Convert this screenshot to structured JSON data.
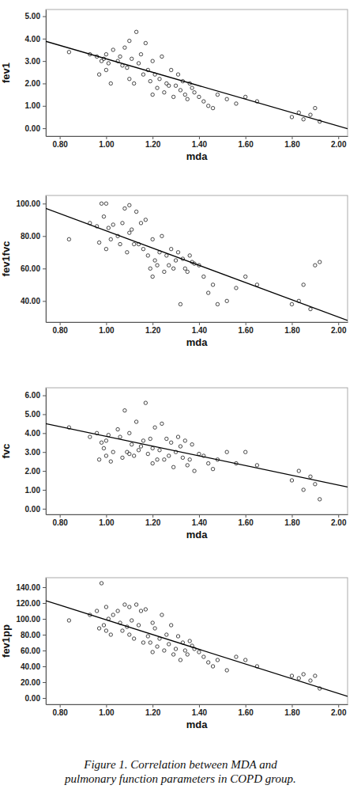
{
  "caption": "Figure 1. Correlation between MDA and pulmonary function parameters in COPD group.",
  "chart_data": [
    {
      "type": "scatter",
      "x_label": "mda",
      "y_label": "fev1",
      "xlim": [
        0.74,
        2.04
      ],
      "xticks": [
        {
          "value": 0.8,
          "label": "0.80"
        },
        {
          "value": 1.0,
          "label": "1.00"
        },
        {
          "value": 1.2,
          "label": "1.20"
        },
        {
          "value": 1.4,
          "label": "1.40"
        },
        {
          "value": 1.6,
          "label": "1.60"
        },
        {
          "value": 1.8,
          "label": "1.80"
        },
        {
          "value": 2.0,
          "label": "2.00"
        }
      ],
      "ylim": [
        -0.35,
        5.3
      ],
      "yticks": [
        {
          "value": 0,
          "label": "0.00"
        },
        {
          "value": 1,
          "label": "1.00"
        },
        {
          "value": 2,
          "label": "2.00"
        },
        {
          "value": 3,
          "label": "3.00"
        },
        {
          "value": 4,
          "label": "4.00"
        },
        {
          "value": 5,
          "label": "5.00"
        }
      ],
      "grid": false,
      "series": [
        {
          "type": "scatter",
          "marker": "circle",
          "color": "#333333",
          "x": [
            0.84,
            0.93,
            0.96,
            0.97,
            0.98,
            0.99,
            1.0,
            1.0,
            1.01,
            1.02,
            1.03,
            1.05,
            1.06,
            1.07,
            1.08,
            1.09,
            1.1,
            1.1,
            1.11,
            1.12,
            1.13,
            1.14,
            1.15,
            1.16,
            1.17,
            1.18,
            1.19,
            1.2,
            1.2,
            1.21,
            1.22,
            1.23,
            1.24,
            1.25,
            1.26,
            1.27,
            1.28,
            1.29,
            1.3,
            1.31,
            1.32,
            1.33,
            1.34,
            1.35,
            1.36,
            1.37,
            1.38,
            1.4,
            1.42,
            1.44,
            1.46,
            1.48,
            1.52,
            1.56,
            1.6,
            1.65,
            1.8,
            1.83,
            1.85,
            1.88,
            1.9,
            1.92
          ],
          "values": [
            3.4,
            3.3,
            3.2,
            2.4,
            3.0,
            3.1,
            2.6,
            3.3,
            2.9,
            2.0,
            3.5,
            3.0,
            3.2,
            2.8,
            3.6,
            2.7,
            3.9,
            2.2,
            3.1,
            2.0,
            4.3,
            2.9,
            3.3,
            2.4,
            3.8,
            2.6,
            2.1,
            3.0,
            1.5,
            2.4,
            1.8,
            2.2,
            3.2,
            1.6,
            2.0,
            1.9,
            2.6,
            1.4,
            1.9,
            2.4,
            1.7,
            2.1,
            1.5,
            1.3,
            2.0,
            1.8,
            1.6,
            1.4,
            1.2,
            1.0,
            0.9,
            1.5,
            1.3,
            1.1,
            1.4,
            1.2,
            0.5,
            0.7,
            0.4,
            0.6,
            0.9,
            0.3
          ]
        },
        {
          "type": "line",
          "line_style": "solid",
          "color": "#000000",
          "x": [
            0.74,
            2.04
          ],
          "values": [
            3.88,
            -0.02
          ]
        }
      ]
    },
    {
      "type": "scatter",
      "x_label": "mda",
      "y_label": "fev1fvc",
      "xlim": [
        0.74,
        2.04
      ],
      "xticks": [
        {
          "value": 0.8,
          "label": "0.80"
        },
        {
          "value": 1.0,
          "label": "1.00"
        },
        {
          "value": 1.2,
          "label": "1.20"
        },
        {
          "value": 1.4,
          "label": "1.40"
        },
        {
          "value": 1.6,
          "label": "1.60"
        },
        {
          "value": 1.8,
          "label": "1.80"
        },
        {
          "value": 2.0,
          "label": "2.00"
        }
      ],
      "ylim": [
        27,
        105
      ],
      "yticks": [
        {
          "value": 40,
          "label": "40.00"
        },
        {
          "value": 60,
          "label": "60.00"
        },
        {
          "value": 80,
          "label": "80.00"
        },
        {
          "value": 100,
          "label": "100.00"
        }
      ],
      "grid": false,
      "series": [
        {
          "type": "scatter",
          "marker": "circle",
          "color": "#333333",
          "x": [
            0.84,
            0.93,
            0.96,
            0.97,
            0.98,
            0.99,
            1.0,
            1.0,
            1.01,
            1.02,
            1.03,
            1.05,
            1.06,
            1.07,
            1.08,
            1.09,
            1.1,
            1.1,
            1.11,
            1.12,
            1.13,
            1.14,
            1.15,
            1.16,
            1.17,
            1.18,
            1.19,
            1.2,
            1.2,
            1.21,
            1.22,
            1.23,
            1.24,
            1.25,
            1.26,
            1.27,
            1.28,
            1.29,
            1.3,
            1.31,
            1.32,
            1.33,
            1.34,
            1.35,
            1.36,
            1.37,
            1.38,
            1.4,
            1.42,
            1.44,
            1.46,
            1.48,
            1.52,
            1.56,
            1.6,
            1.65,
            1.8,
            1.83,
            1.85,
            1.88,
            1.9,
            1.92
          ],
          "values": [
            78,
            88,
            86,
            76,
            100,
            92,
            72,
            100,
            85,
            78,
            87,
            80,
            75,
            88,
            97,
            70,
            99,
            82,
            84,
            75,
            95,
            75,
            88,
            72,
            90,
            68,
            60,
            78,
            55,
            65,
            62,
            70,
            80,
            58,
            68,
            62,
            72,
            60,
            65,
            70,
            38,
            66,
            60,
            58,
            68,
            64,
            63,
            62,
            55,
            45,
            50,
            38,
            40,
            48,
            55,
            50,
            38,
            40,
            50,
            35,
            62,
            64
          ]
        },
        {
          "type": "line",
          "line_style": "solid",
          "color": "#000000",
          "x": [
            0.74,
            2.04
          ],
          "values": [
            97,
            28
          ]
        }
      ]
    },
    {
      "type": "scatter",
      "x_label": "mda",
      "y_label": "fvc",
      "xlim": [
        0.74,
        2.04
      ],
      "xticks": [
        {
          "value": 0.8,
          "label": "0.80"
        },
        {
          "value": 1.0,
          "label": "1.00"
        },
        {
          "value": 1.2,
          "label": "1.20"
        },
        {
          "value": 1.4,
          "label": "1.40"
        },
        {
          "value": 1.6,
          "label": "1.60"
        },
        {
          "value": 1.8,
          "label": "1.80"
        },
        {
          "value": 2.0,
          "label": "2.00"
        }
      ],
      "ylim": [
        -0.3,
        6.4
      ],
      "yticks": [
        {
          "value": 0,
          "label": "0.00"
        },
        {
          "value": 1,
          "label": "1.00"
        },
        {
          "value": 2,
          "label": "2.00"
        },
        {
          "value": 3,
          "label": "3.00"
        },
        {
          "value": 4,
          "label": "4.00"
        },
        {
          "value": 5,
          "label": "5.00"
        },
        {
          "value": 6,
          "label": "6.00"
        }
      ],
      "grid": false,
      "series": [
        {
          "type": "scatter",
          "marker": "circle",
          "color": "#333333",
          "x": [
            0.84,
            0.93,
            0.96,
            0.97,
            0.98,
            0.99,
            1.0,
            1.0,
            1.01,
            1.02,
            1.03,
            1.05,
            1.06,
            1.07,
            1.08,
            1.09,
            1.1,
            1.1,
            1.11,
            1.12,
            1.13,
            1.14,
            1.15,
            1.16,
            1.17,
            1.18,
            1.19,
            1.2,
            1.2,
            1.21,
            1.22,
            1.23,
            1.24,
            1.25,
            1.26,
            1.27,
            1.28,
            1.29,
            1.3,
            1.31,
            1.32,
            1.33,
            1.34,
            1.35,
            1.36,
            1.37,
            1.38,
            1.4,
            1.42,
            1.44,
            1.46,
            1.48,
            1.52,
            1.56,
            1.6,
            1.65,
            1.8,
            1.83,
            1.85,
            1.88,
            1.9,
            1.92
          ],
          "values": [
            4.3,
            3.8,
            4.0,
            2.6,
            3.5,
            3.2,
            2.8,
            3.6,
            3.9,
            2.5,
            3.0,
            4.2,
            3.8,
            2.7,
            5.2,
            3.0,
            4.0,
            2.9,
            3.4,
            2.8,
            4.6,
            3.1,
            3.3,
            3.6,
            5.6,
            2.9,
            3.7,
            3.2,
            2.4,
            4.3,
            2.6,
            3.1,
            4.5,
            2.6,
            3.7,
            2.8,
            3.5,
            2.2,
            3.0,
            3.8,
            3.3,
            2.7,
            3.6,
            2.3,
            2.6,
            3.4,
            2.0,
            2.9,
            2.8,
            2.4,
            2.1,
            2.6,
            3.0,
            2.4,
            3.0,
            2.3,
            1.5,
            2.0,
            1.0,
            1.7,
            1.3,
            0.5
          ]
        },
        {
          "type": "line",
          "line_style": "solid",
          "color": "#000000",
          "x": [
            0.74,
            2.04
          ],
          "values": [
            4.5,
            1.15
          ]
        }
      ]
    },
    {
      "type": "scatter",
      "x_label": "mda",
      "y_label": "fev1pp",
      "xlim": [
        0.74,
        2.04
      ],
      "xticks": [
        {
          "value": 0.8,
          "label": "0.80"
        },
        {
          "value": 1.0,
          "label": "1.00"
        },
        {
          "value": 1.2,
          "label": "1.20"
        },
        {
          "value": 1.4,
          "label": "1.40"
        },
        {
          "value": 1.6,
          "label": "1.60"
        },
        {
          "value": 1.8,
          "label": "1.80"
        },
        {
          "value": 2.0,
          "label": "2.00"
        }
      ],
      "ylim": [
        -8,
        152
      ],
      "yticks": [
        {
          "value": 0,
          "label": "0.00"
        },
        {
          "value": 20,
          "label": "20.00"
        },
        {
          "value": 40,
          "label": "40.00"
        },
        {
          "value": 60,
          "label": "60.00"
        },
        {
          "value": 80,
          "label": "80.00"
        },
        {
          "value": 100,
          "label": "100.00"
        },
        {
          "value": 120,
          "label": "120.00"
        },
        {
          "value": 140,
          "label": "140.00"
        }
      ],
      "grid": false,
      "series": [
        {
          "type": "scatter",
          "marker": "circle",
          "color": "#333333",
          "x": [
            0.84,
            0.93,
            0.96,
            0.97,
            0.98,
            0.99,
            1.0,
            1.0,
            1.01,
            1.02,
            1.03,
            1.05,
            1.06,
            1.07,
            1.08,
            1.09,
            1.1,
            1.1,
            1.11,
            1.12,
            1.13,
            1.14,
            1.15,
            1.16,
            1.17,
            1.18,
            1.19,
            1.2,
            1.2,
            1.21,
            1.22,
            1.23,
            1.24,
            1.25,
            1.26,
            1.27,
            1.28,
            1.29,
            1.3,
            1.31,
            1.32,
            1.33,
            1.34,
            1.35,
            1.36,
            1.37,
            1.38,
            1.4,
            1.42,
            1.44,
            1.46,
            1.48,
            1.52,
            1.56,
            1.6,
            1.65,
            1.8,
            1.83,
            1.85,
            1.88,
            1.9,
            1.92
          ],
          "values": [
            98,
            105,
            110,
            88,
            145,
            92,
            85,
            115,
            100,
            80,
            105,
            110,
            95,
            85,
            118,
            90,
            115,
            80,
            98,
            75,
            118,
            92,
            110,
            70,
            112,
            78,
            70,
            95,
            58,
            88,
            65,
            75,
            105,
            60,
            80,
            68,
            92,
            55,
            62,
            78,
            48,
            70,
            60,
            55,
            72,
            66,
            62,
            58,
            52,
            45,
            40,
            48,
            35,
            52,
            48,
            40,
            28,
            25,
            30,
            22,
            28,
            12
          ]
        },
        {
          "type": "line",
          "line_style": "solid",
          "color": "#000000",
          "x": [
            0.74,
            2.04
          ],
          "values": [
            123,
            2
          ]
        }
      ]
    }
  ]
}
